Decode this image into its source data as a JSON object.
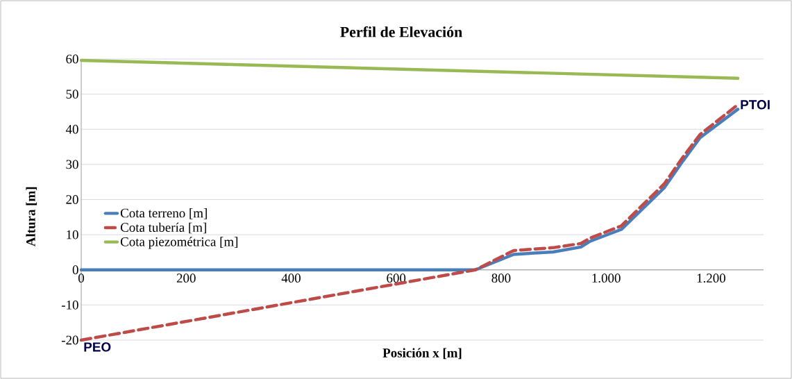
{
  "chart_data": {
    "type": "line",
    "title": "Perfil de Elevación",
    "xlabel": "Posición x [m]",
    "ylabel": "Altura [m]",
    "xlim": [
      0,
      1300
    ],
    "xticks": [
      0,
      200,
      400,
      600,
      800,
      {
        "value": 1000,
        "label": "1.000"
      },
      {
        "value": 1200,
        "label": "1.200"
      }
    ],
    "ylim": [
      -20,
      60
    ],
    "yticks": [
      -20,
      -10,
      0,
      10,
      20,
      30,
      40,
      50,
      60
    ],
    "grid": "y",
    "legend": "left",
    "series": [
      {
        "name": "Cota terreno [m]",
        "color": "#4a7ebb",
        "line_style": "solid",
        "x": [
          0,
          751,
          824,
          899,
          952,
          969,
          1029,
          1111,
          1146,
          1179,
          1251
        ],
        "values": [
          0,
          0,
          4.4,
          5.1,
          6.5,
          8.1,
          11.5,
          23.4,
          30.9,
          37.6,
          45.7
        ]
      },
      {
        "name": "Cota tubería [m]",
        "color": "#be4b48",
        "line_style": "dashed",
        "x": [
          0,
          751,
          824,
          899,
          952,
          969,
          1029,
          1111,
          1146,
          1179,
          1251
        ],
        "values": [
          -20,
          0,
          5.5,
          6.3,
          7.5,
          9,
          12.5,
          24.5,
          32,
          38.5,
          47
        ]
      },
      {
        "name": "Cota piezométrica [m]",
        "color": "#98b954",
        "line_style": "solid",
        "x": [
          0,
          1251
        ],
        "values": [
          59.6,
          54.5
        ]
      }
    ],
    "annotations": [
      {
        "text": "PEO",
        "x": 0,
        "y": -20
      },
      {
        "text": "PTOI",
        "x": 1251,
        "y": 47
      }
    ]
  }
}
